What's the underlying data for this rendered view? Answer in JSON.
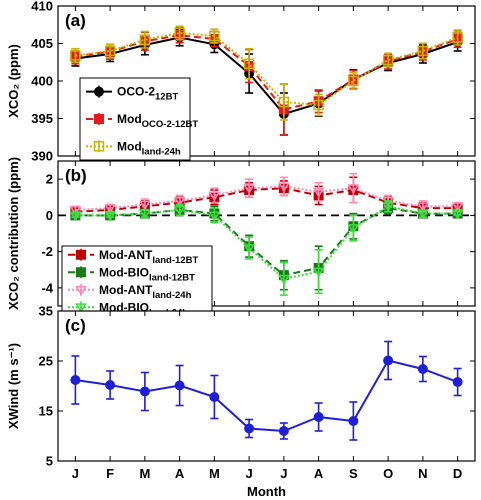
{
  "months": [
    "J",
    "F",
    "M",
    "A",
    "M",
    "J",
    "J",
    "A",
    "S",
    "O",
    "N",
    "D"
  ],
  "xlabel": "Month",
  "chart_data": [
    {
      "type": "line",
      "panel_label": "(a)",
      "ylabel": "XCO₂ (ppm)",
      "ylim": [
        390,
        410
      ],
      "yticks": [
        390,
        395,
        400,
        405,
        410
      ],
      "legend_position": "lower-left",
      "series": [
        {
          "name": "OCO-2",
          "sub": "12BT",
          "color": "#000000",
          "dash": "",
          "marker": "circle",
          "values": [
            403.0,
            403.6,
            404.8,
            405.8,
            404.9,
            401.0,
            395.6,
            397.0,
            400.2,
            402.4,
            403.6,
            405.2
          ],
          "errors": [
            1.0,
            1.0,
            1.3,
            1.1,
            1.1,
            2.6,
            2.8,
            1.7,
            1.3,
            1.0,
            1.2,
            1.2
          ]
        },
        {
          "name": "Mod",
          "sub": "OCO-2-12BT",
          "color": "#e41a1c",
          "dash": "7,4",
          "marker": "square",
          "values": [
            403.3,
            403.9,
            405.3,
            406.1,
            405.6,
            402.0,
            396.2,
            397.3,
            400.2,
            402.6,
            403.9,
            405.6
          ],
          "errors": [
            1.0,
            1.0,
            1.2,
            1.0,
            1.0,
            2.2,
            3.4,
            1.5,
            1.2,
            1.0,
            1.1,
            1.1
          ]
        },
        {
          "name": "Mod",
          "sub": "land-24h",
          "color": "#c8b400",
          "dash": "2,2",
          "marker": "square-open",
          "values": [
            403.4,
            404.0,
            405.5,
            406.4,
            406.0,
            402.3,
            397.2,
            396.8,
            400.0,
            402.8,
            404.0,
            405.8
          ],
          "errors": [
            0.9,
            0.9,
            1.1,
            0.9,
            0.9,
            2.0,
            2.4,
            1.4,
            1.1,
            0.9,
            1.0,
            1.0
          ]
        }
      ]
    },
    {
      "type": "line",
      "panel_label": "(b)",
      "ylabel": "XCO₂ contribution (ppm)",
      "ylim": [
        -5,
        3
      ],
      "yticks": [
        -4,
        -2,
        0,
        2
      ],
      "legend_position": "lower-left",
      "series": [
        {
          "name": "Mod-ANT",
          "sub": "land-12BT",
          "color": "#c00000",
          "dash": "7,4",
          "marker": "square",
          "values": [
            0.2,
            0.3,
            0.5,
            0.7,
            1.0,
            1.4,
            1.5,
            1.1,
            1.4,
            0.7,
            0.4,
            0.4
          ],
          "errors": [
            0.2,
            0.2,
            0.3,
            0.3,
            0.4,
            0.4,
            0.4,
            0.5,
            0.7,
            0.3,
            0.3,
            0.2
          ]
        },
        {
          "name": "Mod-BIO",
          "sub": "land-12BT",
          "color": "#1a7a1a",
          "dash": "7,4",
          "marker": "square",
          "values": [
            0.0,
            0.0,
            0.1,
            0.3,
            0.1,
            -1.7,
            -3.3,
            -2.9,
            -0.6,
            0.4,
            0.1,
            0.1
          ],
          "errors": [
            0.1,
            0.1,
            0.2,
            0.3,
            0.4,
            0.6,
            0.8,
            1.2,
            0.7,
            0.3,
            0.2,
            0.1
          ]
        },
        {
          "name": "Mod-ANT",
          "sub": "land-24h",
          "color": "#ff88b8",
          "dash": "2,2",
          "marker": "triangle-down",
          "values": [
            0.3,
            0.4,
            0.6,
            0.8,
            1.1,
            1.5,
            1.6,
            1.3,
            1.5,
            0.8,
            0.5,
            0.5
          ],
          "errors": [
            0.2,
            0.2,
            0.3,
            0.3,
            0.4,
            0.5,
            0.5,
            0.5,
            0.8,
            0.3,
            0.3,
            0.2
          ]
        },
        {
          "name": "Mod-BIO",
          "sub": "land-24h",
          "color": "#3fdc3f",
          "dash": "2,2",
          "marker": "triangle-down",
          "values": [
            0.0,
            0.0,
            0.1,
            0.3,
            0.0,
            -1.8,
            -3.5,
            -3.1,
            -0.7,
            0.5,
            0.1,
            0.1
          ],
          "errors": [
            0.1,
            0.1,
            0.2,
            0.3,
            0.4,
            0.6,
            0.9,
            1.2,
            0.7,
            0.3,
            0.2,
            0.1
          ]
        }
      ]
    },
    {
      "type": "line",
      "panel_label": "(c)",
      "ylabel": "XWind (m s⁻¹)",
      "ylim": [
        5,
        35
      ],
      "yticks": [
        5,
        15,
        25,
        35
      ],
      "series": [
        {
          "name": "",
          "color": "#1f1fd6",
          "dash": "",
          "marker": "circle",
          "values": [
            21.2,
            20.2,
            18.9,
            20.1,
            17.8,
            11.5,
            11.0,
            13.8,
            13.0,
            25.1,
            23.4,
            20.8
          ],
          "errors": [
            4.8,
            2.8,
            3.8,
            4.0,
            4.3,
            1.8,
            1.6,
            2.8,
            3.8,
            3.8,
            2.5,
            2.7
          ]
        }
      ]
    }
  ]
}
